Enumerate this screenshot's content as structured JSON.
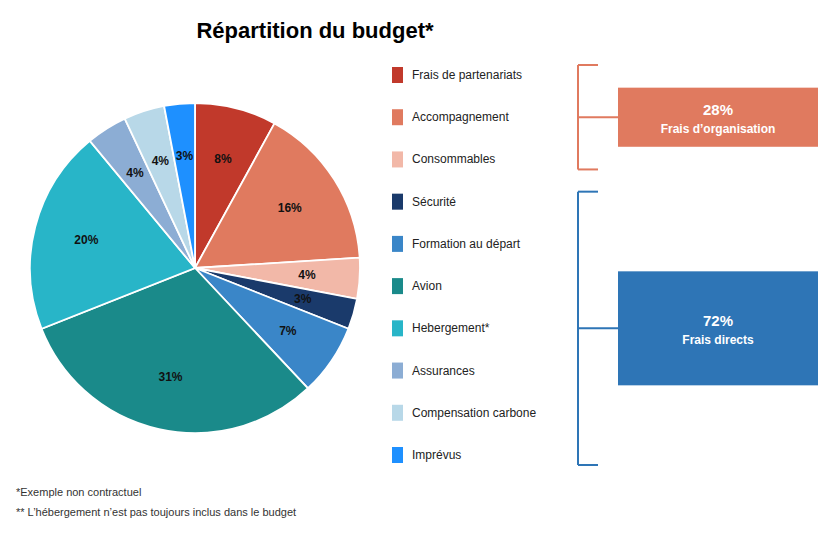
{
  "chart_data": {
    "type": "pie",
    "title": "Répartition du budget*",
    "categories": [
      "Frais de partenariats",
      "Accompagnement",
      "Consommables",
      "Sécurité",
      "Formation au départ",
      "Avion",
      "Hebergement*",
      "Assurances",
      "Compensation carbone",
      "Imprévus"
    ],
    "values": [
      8,
      16,
      4,
      3,
      7,
      31,
      20,
      4,
      4,
      3
    ],
    "value_labels": [
      "8%",
      "16%",
      "4%",
      "3%",
      "7%",
      "31%",
      "20%",
      "4%",
      "4%",
      "3%"
    ],
    "colors": [
      "#C1392B",
      "#E07A5F",
      "#F2B8A8",
      "#1A3A6B",
      "#3A86C8",
      "#1A8A8A",
      "#28B5C8",
      "#8CADD4",
      "#B8D8E8",
      "#1E90FF"
    ],
    "data_labels": true,
    "legend": "right",
    "groups": [
      {
        "label": "28%",
        "value": 28,
        "name": "Frais d’organisation",
        "items": [
          0,
          1,
          2
        ],
        "color": "#E07A5F"
      },
      {
        "label": "72%",
        "value": 72,
        "name": "Frais directs",
        "items": [
          3,
          4,
          5,
          6,
          7,
          8,
          9
        ],
        "color": "#2E75B6"
      }
    ],
    "footnotes": [
      "*Exemple non contractuel",
      "** L’hébergement n’est pas toujours inclus dans le budget"
    ]
  }
}
